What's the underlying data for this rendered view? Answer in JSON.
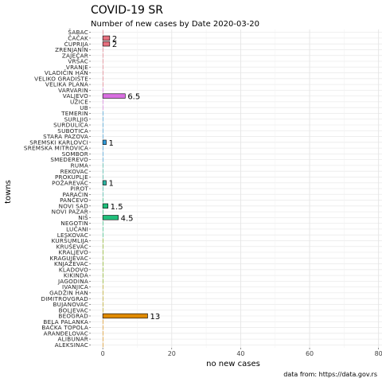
{
  "chart_data": {
    "type": "bar",
    "orientation": "horizontal",
    "title": "COVID-19 SR",
    "subtitle": "Number of new cases by Date 2020-03-20",
    "xlabel": "no new cases",
    "ylabel": "towns",
    "caption": "data from: https://data.gov.rs",
    "xlim": [
      -3.5,
      81
    ],
    "xticks": [
      0,
      20,
      40,
      60,
      80
    ],
    "grid": true,
    "legend": "none",
    "categories": [
      "ŠABAC",
      "ČAČAK",
      "ĆUPRIJA",
      "ZRENJANIN",
      "ZAJEČAR",
      "VRŠAC",
      "VRANJE",
      "VLADIČIN HAN",
      "VELIKO GRADIŠTE",
      "VELIKA PLANA",
      "VARVARIN",
      "VALJEVO",
      "UŽICE",
      "UB",
      "TEMERIN",
      "SURLJIG",
      "SURDULICA",
      "SUBOTICA",
      "STARA PAZOVA",
      "SREMSKI KARLOVCI",
      "SREMSKA MITROVICA",
      "SOMBOR",
      "SMEDEREVO",
      "RUMA",
      "REKOVAC",
      "PROKUPLJE",
      "POŽAREVAC",
      "PIROT",
      "PARAĆIN",
      "PANČEVO",
      "NOVI SAD",
      "NOVI PAZAR",
      "NIŠ",
      "NEGOTIN",
      "LUČANI",
      "LESKOVAC",
      "KURŠUMLIJA",
      "KRUŠEVAC",
      "KRALJEVO",
      "KRAGUJEVAC",
      "KNJAŽEVAC",
      "KLADOVO",
      "KIKINDA",
      "JAGODINA",
      "IVANJICA",
      "GADŽIN HAN",
      "DIMITROVGRAD",
      "BUJANOVAC",
      "BOLJEVAC",
      "BEOGRAD",
      "BELA PALANKA",
      "BAČKA TOPOLA",
      "ARANĐELOVAC",
      "ALIBUNAR",
      "ALEKSINAC"
    ],
    "values": [
      0,
      2,
      2,
      0,
      0,
      0,
      0,
      0,
      0,
      0,
      0,
      6.5,
      0,
      0,
      0,
      0,
      0,
      0,
      0,
      1,
      0,
      0,
      0,
      0,
      0,
      0,
      1,
      0,
      0,
      0,
      1.5,
      0,
      4.5,
      0,
      0,
      0,
      0,
      0,
      0,
      0,
      0,
      0,
      0,
      0,
      0,
      0,
      0,
      0,
      0,
      13,
      0,
      0,
      0,
      0,
      0
    ],
    "labels": [
      "",
      "2",
      "2",
      "",
      "",
      "",
      "",
      "",
      "",
      "",
      "",
      "6.5",
      "",
      "",
      "",
      "",
      "",
      "",
      "",
      "1",
      "",
      "",
      "",
      "",
      "",
      "",
      "1",
      "",
      "",
      "",
      "1.5",
      "",
      "4.5",
      "",
      "",
      "",
      "",
      "",
      "",
      "",
      "",
      "",
      "",
      "",
      "",
      "",
      "",
      "",
      "",
      "13",
      "",
      "",
      "",
      "",
      ""
    ],
    "colors": [
      "#e7707e",
      "#e7707e",
      "#e7707e",
      "#e7707e",
      "#e7707e",
      "#e7707e",
      "#e7707e",
      "#e7707e",
      "#e7707e",
      "#e7707e",
      "#d86fe0",
      "#d86fe0",
      "#d86fe0",
      "#d86fe0",
      "#2f9ad8",
      "#2f9ad8",
      "#2f9ad8",
      "#2f9ad8",
      "#2f9ad8",
      "#2f9ad8",
      "#2f9ad8",
      "#2f9ad8",
      "#2f9ad8",
      "#2bb3a0",
      "#2bb3a0",
      "#2bb3a0",
      "#2bb3a0",
      "#2bb3a0",
      "#2bb3a0",
      "#1fbf7a",
      "#1fbf7a",
      "#1fbf7a",
      "#1fbf7a",
      "#1fbf7a",
      "#1fbf7a",
      "#1fbf7a",
      "#7cae00",
      "#7cae00",
      "#7cae00",
      "#7cae00",
      "#7cae00",
      "#7cae00",
      "#7cae00",
      "#7cae00",
      "#b8a000",
      "#b8a000",
      "#b8a000",
      "#b8a000",
      "#b8a000",
      "#e08b00",
      "#e08b00",
      "#e08b00",
      "#e08b00",
      "#e08b00",
      "#e08b00"
    ]
  }
}
